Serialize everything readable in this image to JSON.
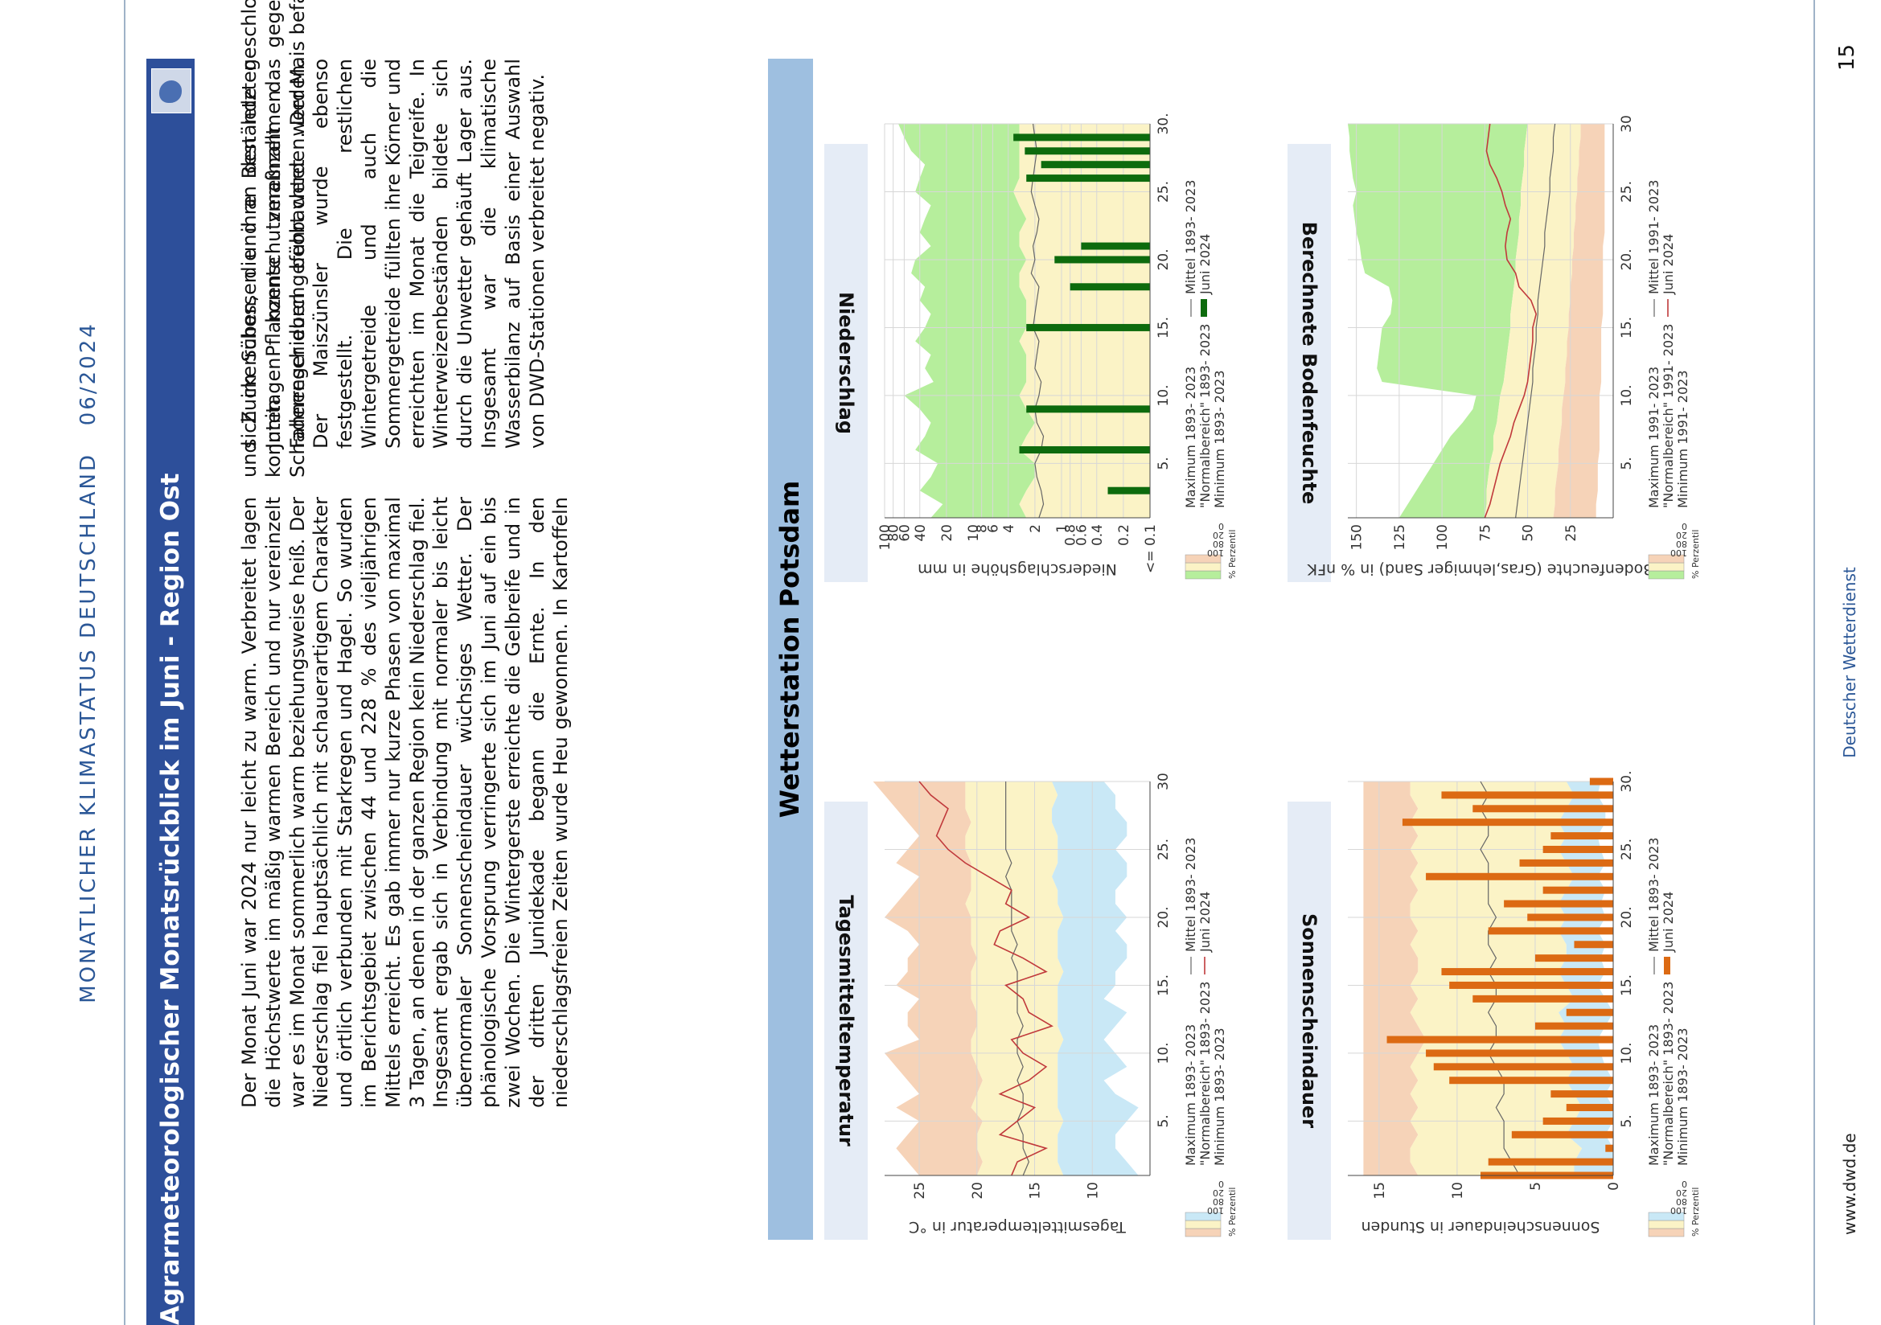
{
  "header": {
    "publication": "MONATLICHER KLIMASTATUS DEUTSCHLAND",
    "issue": "06/2024"
  },
  "section": {
    "title": "Agrarmeteorologischer Monatsrückblick im Juni - Region Ost",
    "logo_icon": "germany-map-icon"
  },
  "text": {
    "column1": "Der Monat Juni war 2024 nur leicht zu warm. Verbreitet lagen die Höchstwerte im mäßig warmen Bereich und nur vereinzelt war es im Monat sommerlich warm beziehungsweise heiß. Der Niederschlag fiel hauptsächlich mit schauerartigem Charakter und örtlich verbunden mit Starkregen und Hagel. So wurden im Berichtsgebiet zwischen 44 und 228 % des vieljährigen Mittels erreicht. Es gab immer nur kurze Phasen von maximal 3 Tagen, an denen in der ganzen Region kein Niederschlag fiel. Insgesamt ergab sich in Verbindung mit normaler bis leicht übernormaler Sonnenscheindauer wüchsiges Wetter. Der phänologische Vorsprung verringerte sich im Juni auf ein bis zwei Wochen. Die Wintergerste erreichte die Gelbreife und in der dritten Junidekade begann die Ernte. In den niederschlagsfreien Zeiten wurde Heu gewonnen. In Kartoffeln und Zuckerrüben, die ihre Bestände geschlossen hatten, konnten Pflanzenschutzmaßnahmen gegen pilzliche Schaderreger durchgeführt werden. Der Mais befand",
    "column2": "sich im Schossen und an den letzten Junitagen konnte vereinzelt das Fahnenschieben beobachtet werden. Der Maiszünsler wurde ebenso festgestellt. Die restlichen Wintergetreide und auch die Sommergetreide füllten ihre Körner und erreichten im Monat die Teigreife. In Winterweizenbeständen bildete sich durch die Unwetter gehäuft Lager aus. Insgesamt war die klimatische Wasserbilanz auf Basis einer Auswahl von DWD-Stationen verbreitet negativ."
  },
  "station": {
    "title": "Wetterstation Potsdam"
  },
  "panels": {
    "temperature": {
      "title": "Tagesmitteltemperatur"
    },
    "precipitation": {
      "title": "Niederschlag"
    },
    "sunshine": {
      "title": "Sonnenscheindauer"
    },
    "soil": {
      "title": "Berechnete Bodenfeuchte"
    }
  },
  "footer": {
    "website": "www.dwd.de",
    "publisher": "Deutscher Wetterdienst",
    "page_number": "15"
  },
  "colors": {
    "title_bar": "#2d4f9a",
    "station_bar": "#9ebfe0",
    "panel_title_bg": "#e5ecf6",
    "band_max_temp": "#f6d3b8",
    "band_normal": "#fbf3c6",
    "band_min_temp": "#c9e8f6",
    "band_max_wet": "#b6ee9c",
    "band_min_dry": "#f6d3b8",
    "series_line": "#c0393b",
    "precip_bar": "#0d6b0d",
    "sun_bar": "#dc6a13"
  },
  "chart_data": [
    {
      "id": "temperature",
      "type": "area",
      "ylabel": "Tagesmitteltemperatur in °C",
      "yticks": [
        10,
        15,
        20,
        25
      ],
      "ylim": [
        5,
        28
      ],
      "xticks": [
        "5.",
        "10.",
        "15.",
        "20.",
        "25.",
        "30"
      ],
      "xlim": [
        1,
        30
      ],
      "grid": true,
      "legend_position": "bottom",
      "legend": [
        "Maximum 1893- 2023",
        "\"Normalbereich\" 1893- 2023",
        "Minimum 1893- 2023",
        "Mittel 1893- 2023",
        "Juni 2024"
      ],
      "legend_scale_title": "% Perzentil",
      "legend_scale_ticks": [
        "100",
        "80",
        "20",
        "0"
      ],
      "x": [
        1,
        2,
        3,
        4,
        5,
        6,
        7,
        8,
        9,
        10,
        11,
        12,
        13,
        14,
        15,
        16,
        17,
        18,
        19,
        20,
        21,
        22,
        23,
        24,
        25,
        26,
        27,
        28,
        29,
        30
      ],
      "max": [
        25,
        26,
        27,
        26,
        25,
        27,
        25,
        26,
        27,
        28,
        25,
        26,
        26,
        25,
        27,
        26,
        26,
        25,
        26,
        28,
        27,
        26,
        25,
        27,
        26,
        25,
        26,
        27,
        28,
        29
      ],
      "p80": [
        20,
        19.5,
        20,
        20,
        19.5,
        20.5,
        20,
        19.5,
        20,
        20.5,
        20.5,
        20,
        20,
        20.5,
        20.5,
        20.5,
        20,
        20.5,
        20.5,
        20.5,
        21,
        20.5,
        20.5,
        20.5,
        21,
        21,
        20.5,
        21,
        21,
        21
      ],
      "p20": [
        12.5,
        13,
        13,
        13,
        12.5,
        13,
        13,
        13,
        13,
        13,
        12.5,
        13,
        13,
        13,
        13,
        12.5,
        13,
        13,
        13,
        12.5,
        13,
        13,
        13.5,
        13,
        13,
        13,
        13.5,
        13.5,
        13,
        13.5
      ],
      "min": [
        6,
        7,
        8,
        8,
        7,
        6,
        8,
        9,
        7,
        8,
        9,
        8,
        7,
        9,
        8,
        8,
        7,
        7,
        8,
        7,
        8,
        8,
        7,
        7,
        8,
        7,
        7,
        8,
        8,
        9
      ],
      "mean": [
        16,
        15.5,
        16,
        16,
        16.5,
        16,
        16,
        16.5,
        16,
        16.5,
        16.5,
        16,
        16.5,
        16.5,
        16.5,
        16.5,
        17,
        16.5,
        17,
        17,
        17,
        17,
        17.5,
        17,
        17.5,
        17.5,
        17.5,
        17.5,
        17.5,
        17.5
      ],
      "series": [
        {
          "name": "Juni 2024",
          "values": [
            17,
            16.5,
            14,
            18,
            16.5,
            15,
            18,
            15.5,
            14,
            16,
            17,
            13.5,
            15.5,
            16,
            17.5,
            14,
            16,
            18.5,
            18,
            15.5,
            17.5,
            17,
            19,
            21,
            22.5,
            23.5,
            23,
            22.5,
            24,
            25
          ]
        }
      ]
    },
    {
      "id": "precipitation",
      "type": "bar",
      "ylabel": "Niederschlagshöhe in mm",
      "yticks": [
        "<= 0.1",
        "0.2",
        "0.4",
        "0.6",
        "0.8",
        "1",
        "2",
        "4",
        "6",
        "8",
        "10",
        "20",
        "40",
        "60",
        "80",
        "100"
      ],
      "yscale": "log",
      "ylim": [
        0.1,
        100
      ],
      "xticks": [
        "5.",
        "10.",
        "15.",
        "20.",
        "25.",
        "30."
      ],
      "xlim": [
        1,
        30
      ],
      "grid": true,
      "legend_position": "bottom",
      "legend": [
        "Maximum 1893- 2023",
        "\"Normalbereich\" 1893- 2023",
        "Minimum 1893- 2023",
        "Mittel 1893- 2023",
        "Juni 2024"
      ],
      "legend_scale_title": "% Perzentil",
      "legend_scale_ticks": [
        "100",
        "80",
        "20",
        "0"
      ],
      "x": [
        1,
        2,
        3,
        4,
        5,
        6,
        7,
        8,
        9,
        10,
        11,
        12,
        13,
        14,
        15,
        16,
        17,
        18,
        19,
        20,
        21,
        22,
        23,
        24,
        25,
        26,
        27,
        28,
        29,
        30
      ],
      "max": [
        30,
        22,
        40,
        30,
        25,
        45,
        35,
        30,
        40,
        60,
        28,
        35,
        30,
        45,
        35,
        30,
        40,
        35,
        50,
        45,
        30,
        40,
        35,
        30,
        45,
        40,
        35,
        50,
        60,
        70
      ],
      "p80": [
        2.5,
        3,
        2.5,
        2,
        2,
        3,
        2.5,
        2,
        2.5,
        3,
        2.5,
        2.5,
        2.5,
        3,
        2.5,
        2.5,
        2.5,
        3,
        3,
        2.5,
        3,
        3,
        2.5,
        3,
        3.5,
        3,
        3,
        3,
        3,
        3
      ],
      "p20": [
        0.1,
        0.1,
        0.1,
        0.1,
        0.1,
        0.1,
        0.1,
        0.1,
        0.1,
        0.1,
        0.1,
        0.1,
        0.1,
        0.1,
        0.1,
        0.1,
        0.1,
        0.1,
        0.1,
        0.1,
        0.1,
        0.1,
        0.1,
        0.1,
        0.1,
        0.1,
        0.1,
        0.1,
        0.1,
        0.1
      ],
      "mean": [
        1.8,
        1.6,
        1.7,
        1.9,
        2,
        1.7,
        1.6,
        1.9,
        2,
        1.8,
        1.7,
        2,
        1.9,
        1.8,
        2.1,
        2,
        1.9,
        1.8,
        2.2,
        2,
        2.1,
        1.9,
        1.8,
        2,
        2.2,
        2.1,
        2,
        1.9,
        2,
        2.1
      ],
      "series": [
        {
          "name": "Juni 2024",
          "values": [
            0.1,
            0.1,
            0.3,
            0.1,
            0.1,
            3,
            0.1,
            0.1,
            2.5,
            0.1,
            0.1,
            0.1,
            0.1,
            0.1,
            2.5,
            0.1,
            0.1,
            0.8,
            0.1,
            1.2,
            0.6,
            0.1,
            0.1,
            0.1,
            0.1,
            2.5,
            1.7,
            2.6,
            3.5,
            0.1
          ]
        }
      ]
    },
    {
      "id": "sunshine",
      "type": "bar",
      "ylabel": "Sonnenscheindauer in Stunden",
      "yticks": [
        0,
        5,
        10,
        15
      ],
      "ylim": [
        0,
        17
      ],
      "xticks": [
        "5.",
        "10.",
        "15.",
        "20.",
        "25.",
        "30."
      ],
      "xlim": [
        1,
        30
      ],
      "grid": true,
      "legend_position": "bottom",
      "legend": [
        "Maximum 1893- 2023",
        "\"Normalbereich\" 1893- 2023",
        "Minimum 1893- 2023",
        "Mittel 1893- 2023",
        "Juni 2024"
      ],
      "legend_scale_title": "% Perzentil",
      "legend_scale_ticks": [
        "100",
        "80",
        "20",
        "0"
      ],
      "x": [
        1,
        2,
        3,
        4,
        5,
        6,
        7,
        8,
        9,
        10,
        11,
        12,
        13,
        14,
        15,
        16,
        17,
        18,
        19,
        20,
        21,
        22,
        23,
        24,
        25,
        26,
        27,
        28,
        29,
        30
      ],
      "max": [
        16,
        16,
        16,
        16,
        16,
        16,
        16,
        16,
        16,
        16,
        16,
        16,
        16,
        16,
        16,
        16,
        16,
        16,
        16,
        16,
        16,
        16,
        16,
        16,
        16,
        16,
        16,
        16,
        16,
        16
      ],
      "p80": [
        12.5,
        13,
        13,
        12.5,
        13,
        12.5,
        13,
        12.5,
        13,
        12.5,
        12,
        12.5,
        13,
        12.5,
        13,
        12.5,
        12.5,
        13,
        12.5,
        13,
        13,
        12.5,
        13,
        12.5,
        13,
        12.5,
        13,
        12.5,
        13,
        13
      ],
      "p20": [
        2.5,
        2.5,
        2,
        3,
        2.5,
        2,
        2.5,
        3,
        2.5,
        3,
        3.5,
        3,
        3.5,
        2.5,
        3,
        3.5,
        3,
        3,
        3.5,
        3,
        3.5,
        3,
        2.5,
        3,
        3.5,
        3,
        3.5,
        3,
        2.5,
        3
      ],
      "min": [
        0,
        0,
        0,
        0.5,
        0,
        0,
        0.5,
        0,
        0.5,
        0.8,
        1,
        0.5,
        0,
        0.5,
        1,
        0.5,
        0.8,
        0.5,
        1,
        0.5,
        0.8,
        0.5,
        1,
        0.5,
        0.8,
        1,
        0.5,
        0.5,
        1,
        0.8
      ],
      "mean": [
        6,
        6.5,
        7,
        7,
        7,
        7.5,
        7,
        7,
        7.5,
        8,
        7.5,
        7.5,
        8,
        7.5,
        7.5,
        8,
        7.5,
        8,
        8,
        7.5,
        8,
        8,
        8,
        8,
        8.5,
        8,
        8,
        8.5,
        8,
        8.5
      ],
      "series": [
        {
          "name": "Juni 2024",
          "values": [
            8.5,
            8,
            0.5,
            6.5,
            4.5,
            3,
            4,
            10.5,
            11.5,
            12,
            14.5,
            5,
            3,
            9,
            10.5,
            11,
            5,
            2.5,
            8,
            5.5,
            7,
            4.5,
            12,
            6,
            4.5,
            4,
            13.5,
            9,
            11,
            1.5
          ]
        }
      ]
    },
    {
      "id": "soil",
      "type": "area",
      "ylabel": "Bodenfeuchte (Gras,lehmiger Sand) in % nFK",
      "yticks": [
        25,
        50,
        75,
        100,
        125,
        150
      ],
      "ylim": [
        0,
        155
      ],
      "xticks": [
        "5.",
        "10.",
        "15.",
        "20.",
        "25.",
        "30"
      ],
      "xlim": [
        1,
        30
      ],
      "grid": true,
      "legend_position": "bottom",
      "legend": [
        "Maximum 1991- 2023",
        "\"Normalbereich\" 1991- 2023",
        "Minimum 1991- 2023",
        "Mittel 1991- 2023",
        "Juni 2024"
      ],
      "legend_scale_title": "% Perzentil",
      "legend_scale_ticks": [
        "100",
        "80",
        "20",
        "0"
      ],
      "x": [
        1,
        2,
        3,
        4,
        5,
        6,
        7,
        8,
        9,
        10,
        11,
        12,
        13,
        14,
        15,
        16,
        17,
        18,
        19,
        20,
        21,
        22,
        23,
        24,
        25,
        26,
        27,
        28,
        29,
        30
      ],
      "max": [
        125,
        120,
        115,
        110,
        105,
        100,
        95,
        88,
        82,
        80,
        135,
        138,
        137,
        136,
        135,
        130,
        129,
        131,
        145,
        147,
        148,
        150,
        151,
        152,
        150,
        152,
        153,
        154,
        154,
        155
      ],
      "p80": [
        75,
        74,
        74,
        73,
        72,
        70,
        70,
        68,
        67,
        66,
        64,
        63,
        62,
        61,
        60,
        60,
        59,
        58,
        57,
        57,
        56,
        55,
        55,
        54,
        54,
        53,
        52,
        52,
        51,
        50
      ],
      "p20": [
        35,
        34,
        34,
        33,
        32,
        32,
        31,
        30,
        30,
        29,
        28,
        28,
        27,
        27,
        26,
        26,
        25,
        25,
        24,
        24,
        23,
        23,
        22,
        22,
        21,
        21,
        20,
        20,
        19,
        19
      ],
      "min": [
        10,
        10,
        9,
        9,
        9,
        8,
        8,
        8,
        8,
        8,
        7,
        7,
        7,
        7,
        7,
        6,
        6,
        6,
        6,
        6,
        6,
        5,
        5,
        5,
        5,
        5,
        5,
        5,
        5,
        5
      ],
      "mean": [
        57,
        56,
        55,
        54,
        53,
        52,
        51,
        50,
        49,
        48,
        47,
        47,
        46,
        45,
        45,
        44,
        44,
        43,
        42,
        41,
        40,
        40,
        39,
        38,
        37,
        37,
        36,
        35,
        35,
        34
      ],
      "series": [
        {
          "name": "Juni 2024",
          "values": [
            75,
            72,
            70,
            68,
            66,
            63,
            60,
            58,
            55,
            52,
            50,
            49,
            48,
            47,
            47,
            45,
            48,
            55,
            57,
            62,
            63,
            62,
            60,
            63,
            65,
            68,
            72,
            74,
            73,
            72
          ]
        }
      ]
    }
  ]
}
